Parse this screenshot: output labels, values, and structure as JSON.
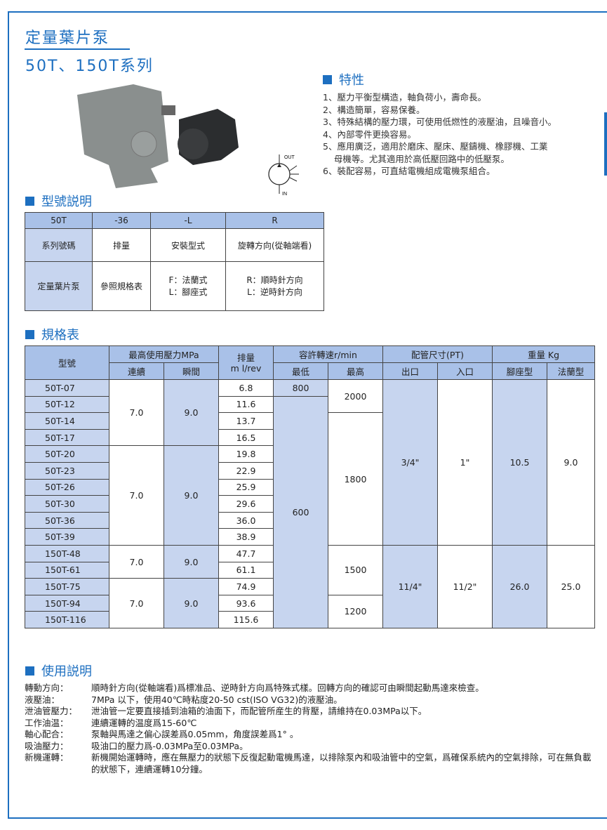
{
  "header": {
    "title": "定量葉片泵",
    "subtitle": "50T、150T系列"
  },
  "symbol": {
    "out": "OUT",
    "in": "IN"
  },
  "features": {
    "heading": "特性",
    "items": [
      "1、壓力平衡型構造，軸負荷小，壽命長。",
      "2、構造簡單，容易保養。",
      "3、特殊結構的壓力環，可使用低燃性的液壓油，且噪音小。",
      "4、內部零件更換容易。",
      "5、應用廣泛，適用於磨床、壓床、壓鑄機、橡膠機、工業\n    母機等。尤其適用於高低壓回路中的低壓泵。",
      "6、裝配容易，可直結電機組成電機泵組合。"
    ]
  },
  "model_code": {
    "heading": "型號説明",
    "codes": [
      "50T",
      "-36",
      "-L",
      "R"
    ],
    "names": [
      "系列號碼",
      "排量",
      "安裝型式",
      "旋轉方向(從軸端看)"
    ],
    "details": [
      "定量葉片泵",
      "參照規格表",
      "F：法蘭式\nL：腳座式",
      "R：順時針方向\nL：逆時針方向"
    ]
  },
  "spec": {
    "heading": "規格表",
    "headers": {
      "model": "型號",
      "pressure": "最高使用壓力MPa",
      "continuous": "連續",
      "peak": "瞬間",
      "displacement": "排量\nm l/rev",
      "speed": "容許轉速r/min",
      "min": "最低",
      "max": "最高",
      "pipe": "配管尺寸(PT)",
      "outlet": "出口",
      "inlet": "入口",
      "weight": "重量 Kg",
      "foot": "腳座型",
      "flange": "法蘭型"
    },
    "rows": [
      [
        "50T-07",
        "6.8"
      ],
      [
        "50T-12",
        "11.6"
      ],
      [
        "50T-14",
        "13.7"
      ],
      [
        "50T-17",
        "16.5"
      ],
      [
        "50T-20",
        "19.8"
      ],
      [
        "50T-23",
        "22.9"
      ],
      [
        "50T-26",
        "25.9"
      ],
      [
        "50T-30",
        "29.6"
      ],
      [
        "50T-36",
        "36.0"
      ],
      [
        "50T-39",
        "38.9"
      ],
      [
        "150T-48",
        "47.7"
      ],
      [
        "150T-61",
        "61.1"
      ],
      [
        "150T-75",
        "74.9"
      ],
      [
        "150T-94",
        "93.6"
      ],
      [
        "150T-116",
        "115.6"
      ]
    ],
    "pressure_groups": [
      {
        "rows": 4,
        "continuous": "7.0",
        "peak": "9.0"
      },
      {
        "rows": 6,
        "continuous": "7.0",
        "peak": "9.0"
      },
      {
        "rows": 2,
        "continuous": "7.0",
        "peak": "9.0"
      },
      {
        "rows": 3,
        "continuous": "7.0",
        "peak": "9.0"
      }
    ],
    "min_speed_groups": [
      {
        "rows": 1,
        "value": "800"
      },
      {
        "rows": 14,
        "value": "600"
      }
    ],
    "max_speed_groups": [
      {
        "rows": 2,
        "value": "2000"
      },
      {
        "rows": 8,
        "value": "1800"
      },
      {
        "rows": 3,
        "value": "1500"
      },
      {
        "rows": 2,
        "value": "1200"
      }
    ],
    "series_groups": [
      {
        "rows": 10,
        "outlet": "3/4\"",
        "inlet": "1\"",
        "foot": "10.5",
        "flange": "9.0"
      },
      {
        "rows": 5,
        "outlet": "11/4\"",
        "inlet": "11/2\"",
        "foot": "26.0",
        "flange": "25.0"
      }
    ]
  },
  "usage": {
    "heading": "使用説明",
    "items": [
      {
        "label": "轉動方向：",
        "text": "順時針方向(從軸端看)爲標准品、逆時針方向爲特殊式樣。回轉方向的確認可由瞬間起動馬達來檢查。"
      },
      {
        "label": "液壓油：",
        "text": "7MPa 以下，使用40℃時粘度20-50 cst(ISO VG32)的液壓油。"
      },
      {
        "label": "泄油管壓力：",
        "text": "泄油管一定要直接插到油箱的油面下，而配管所産生的背壓，請維持在0.03MPa以下。"
      },
      {
        "label": "工作油温：",
        "text": "連續運轉的温度爲15-60℃"
      },
      {
        "label": "軸心配合：",
        "text": "泵軸與馬達之偏心誤差爲0.05mm，角度誤差爲1° 。"
      },
      {
        "label": "吸油壓力：",
        "text": "吸油口的壓力爲-0.03MPa至0.03MPa。"
      },
      {
        "label": "新機運轉：",
        "text": "新機開始運轉時，應在無壓力的狀態下反復起動電機馬達，以排除泵內和吸油管中的空氣，爲確保系統內的空氣排除，可在無負載的狀態下，連續運轉10分鐘。"
      }
    ]
  },
  "colors": {
    "accent": "#1d6fc0",
    "cell_fill": "#c7d5ef",
    "header_fill": "#a9c1e8"
  }
}
